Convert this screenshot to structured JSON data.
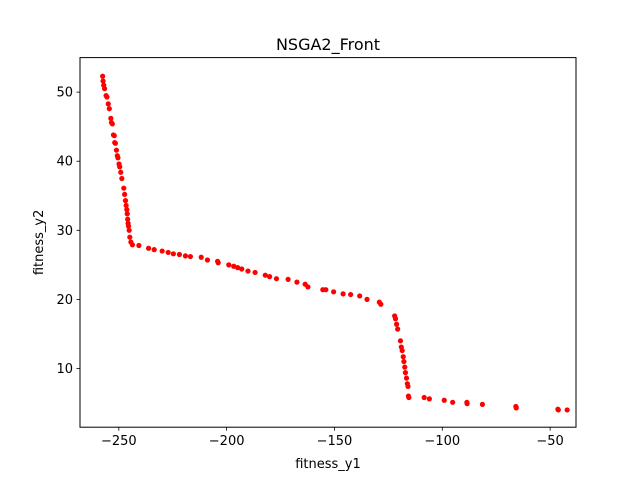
{
  "chart_data": {
    "type": "scatter",
    "title": "NSGA2_Front",
    "xlabel": "fitness_y1",
    "ylabel": "fitness_y2",
    "xlim": [
      -268,
      -38
    ],
    "ylim": [
      1.5,
      55.0
    ],
    "xticks": [
      -250,
      -200,
      -150,
      -100,
      -50
    ],
    "xtick_labels": [
      "−250",
      "−200",
      "−150",
      "−100",
      "−50"
    ],
    "yticks": [
      10,
      20,
      30,
      40,
      50
    ],
    "ytick_labels": [
      "10",
      "20",
      "30",
      "40",
      "50"
    ],
    "grid": false,
    "marker_color": "#ff0000",
    "series": [
      {
        "points": [
          [
            -257.5,
            52.3
          ],
          [
            -257.3,
            51.6
          ],
          [
            -257.0,
            51.0
          ],
          [
            -256.6,
            50.5
          ],
          [
            -255.9,
            49.5
          ],
          [
            -255.5,
            49.3
          ],
          [
            -254.9,
            48.3
          ],
          [
            -254.4,
            47.6
          ],
          [
            -253.7,
            46.2
          ],
          [
            -253.4,
            45.6
          ],
          [
            -253.0,
            45.4
          ],
          [
            -252.5,
            43.8
          ],
          [
            -252.1,
            43.7
          ],
          [
            -251.9,
            42.7
          ],
          [
            -251.6,
            42.6
          ],
          [
            -251.1,
            41.6
          ],
          [
            -250.7,
            40.8
          ],
          [
            -250.4,
            40.5
          ],
          [
            -249.9,
            39.6
          ],
          [
            -249.6,
            39.2
          ],
          [
            -249.1,
            38.4
          ],
          [
            -248.6,
            37.5
          ],
          [
            -247.7,
            36.1
          ],
          [
            -247.3,
            35.2
          ],
          [
            -246.9,
            34.3
          ],
          [
            -246.6,
            33.6
          ],
          [
            -246.3,
            33.0
          ],
          [
            -246.1,
            32.4
          ],
          [
            -245.9,
            31.6
          ],
          [
            -245.7,
            31.0
          ],
          [
            -245.5,
            30.6
          ],
          [
            -245.2,
            30.0
          ],
          [
            -244.9,
            29.0
          ],
          [
            -244.4,
            28.3
          ],
          [
            -243.7,
            27.9
          ],
          [
            -240.7,
            27.8
          ],
          [
            -236.2,
            27.4
          ],
          [
            -233.6,
            27.2
          ],
          [
            -229.9,
            27.0
          ],
          [
            -227.1,
            26.8
          ],
          [
            -224.7,
            26.6
          ],
          [
            -221.9,
            26.5
          ],
          [
            -219.1,
            26.3
          ],
          [
            -216.8,
            26.2
          ],
          [
            -211.8,
            26.1
          ],
          [
            -208.9,
            25.7
          ],
          [
            -204.2,
            25.5
          ],
          [
            -203.9,
            25.3
          ],
          [
            -199.0,
            25.0
          ],
          [
            -196.7,
            24.8
          ],
          [
            -194.9,
            24.6
          ],
          [
            -193.0,
            24.4
          ],
          [
            -190.1,
            24.1
          ],
          [
            -186.8,
            23.9
          ],
          [
            -182.1,
            23.5
          ],
          [
            -180.1,
            23.3
          ],
          [
            -176.9,
            23.0
          ],
          [
            -171.5,
            22.9
          ],
          [
            -167.4,
            22.5
          ],
          [
            -163.6,
            22.2
          ],
          [
            -162.3,
            21.8
          ],
          [
            -155.4,
            21.4
          ],
          [
            -154.0,
            21.4
          ],
          [
            -150.4,
            21.1
          ],
          [
            -146.0,
            20.8
          ],
          [
            -142.5,
            20.7
          ],
          [
            -138.3,
            20.5
          ],
          [
            -134.9,
            20.0
          ],
          [
            -129.2,
            19.6
          ],
          [
            -128.5,
            19.3
          ],
          [
            -122.1,
            17.6
          ],
          [
            -121.7,
            17.2
          ],
          [
            -121.2,
            16.4
          ],
          [
            -120.7,
            15.7
          ],
          [
            -119.4,
            14.0
          ],
          [
            -119.0,
            13.1
          ],
          [
            -118.6,
            12.6
          ],
          [
            -118.1,
            11.7
          ],
          [
            -117.8,
            11.0
          ],
          [
            -117.4,
            10.2
          ],
          [
            -117.1,
            9.4
          ],
          [
            -116.6,
            8.6
          ],
          [
            -116.2,
            7.8
          ],
          [
            -115.9,
            7.4
          ],
          [
            -115.7,
            6.0
          ],
          [
            -115.5,
            5.8
          ],
          [
            -108.4,
            5.8
          ],
          [
            -106.0,
            5.6
          ],
          [
            -99.1,
            5.4
          ],
          [
            -95.2,
            5.1
          ],
          [
            -88.6,
            5.1
          ],
          [
            -88.5,
            4.9
          ],
          [
            -81.4,
            4.8
          ],
          [
            -65.9,
            4.5
          ],
          [
            -65.7,
            4.3
          ],
          [
            -46.4,
            4.1
          ],
          [
            -46.2,
            4.0
          ],
          [
            -42.1,
            4.0
          ]
        ]
      }
    ]
  }
}
